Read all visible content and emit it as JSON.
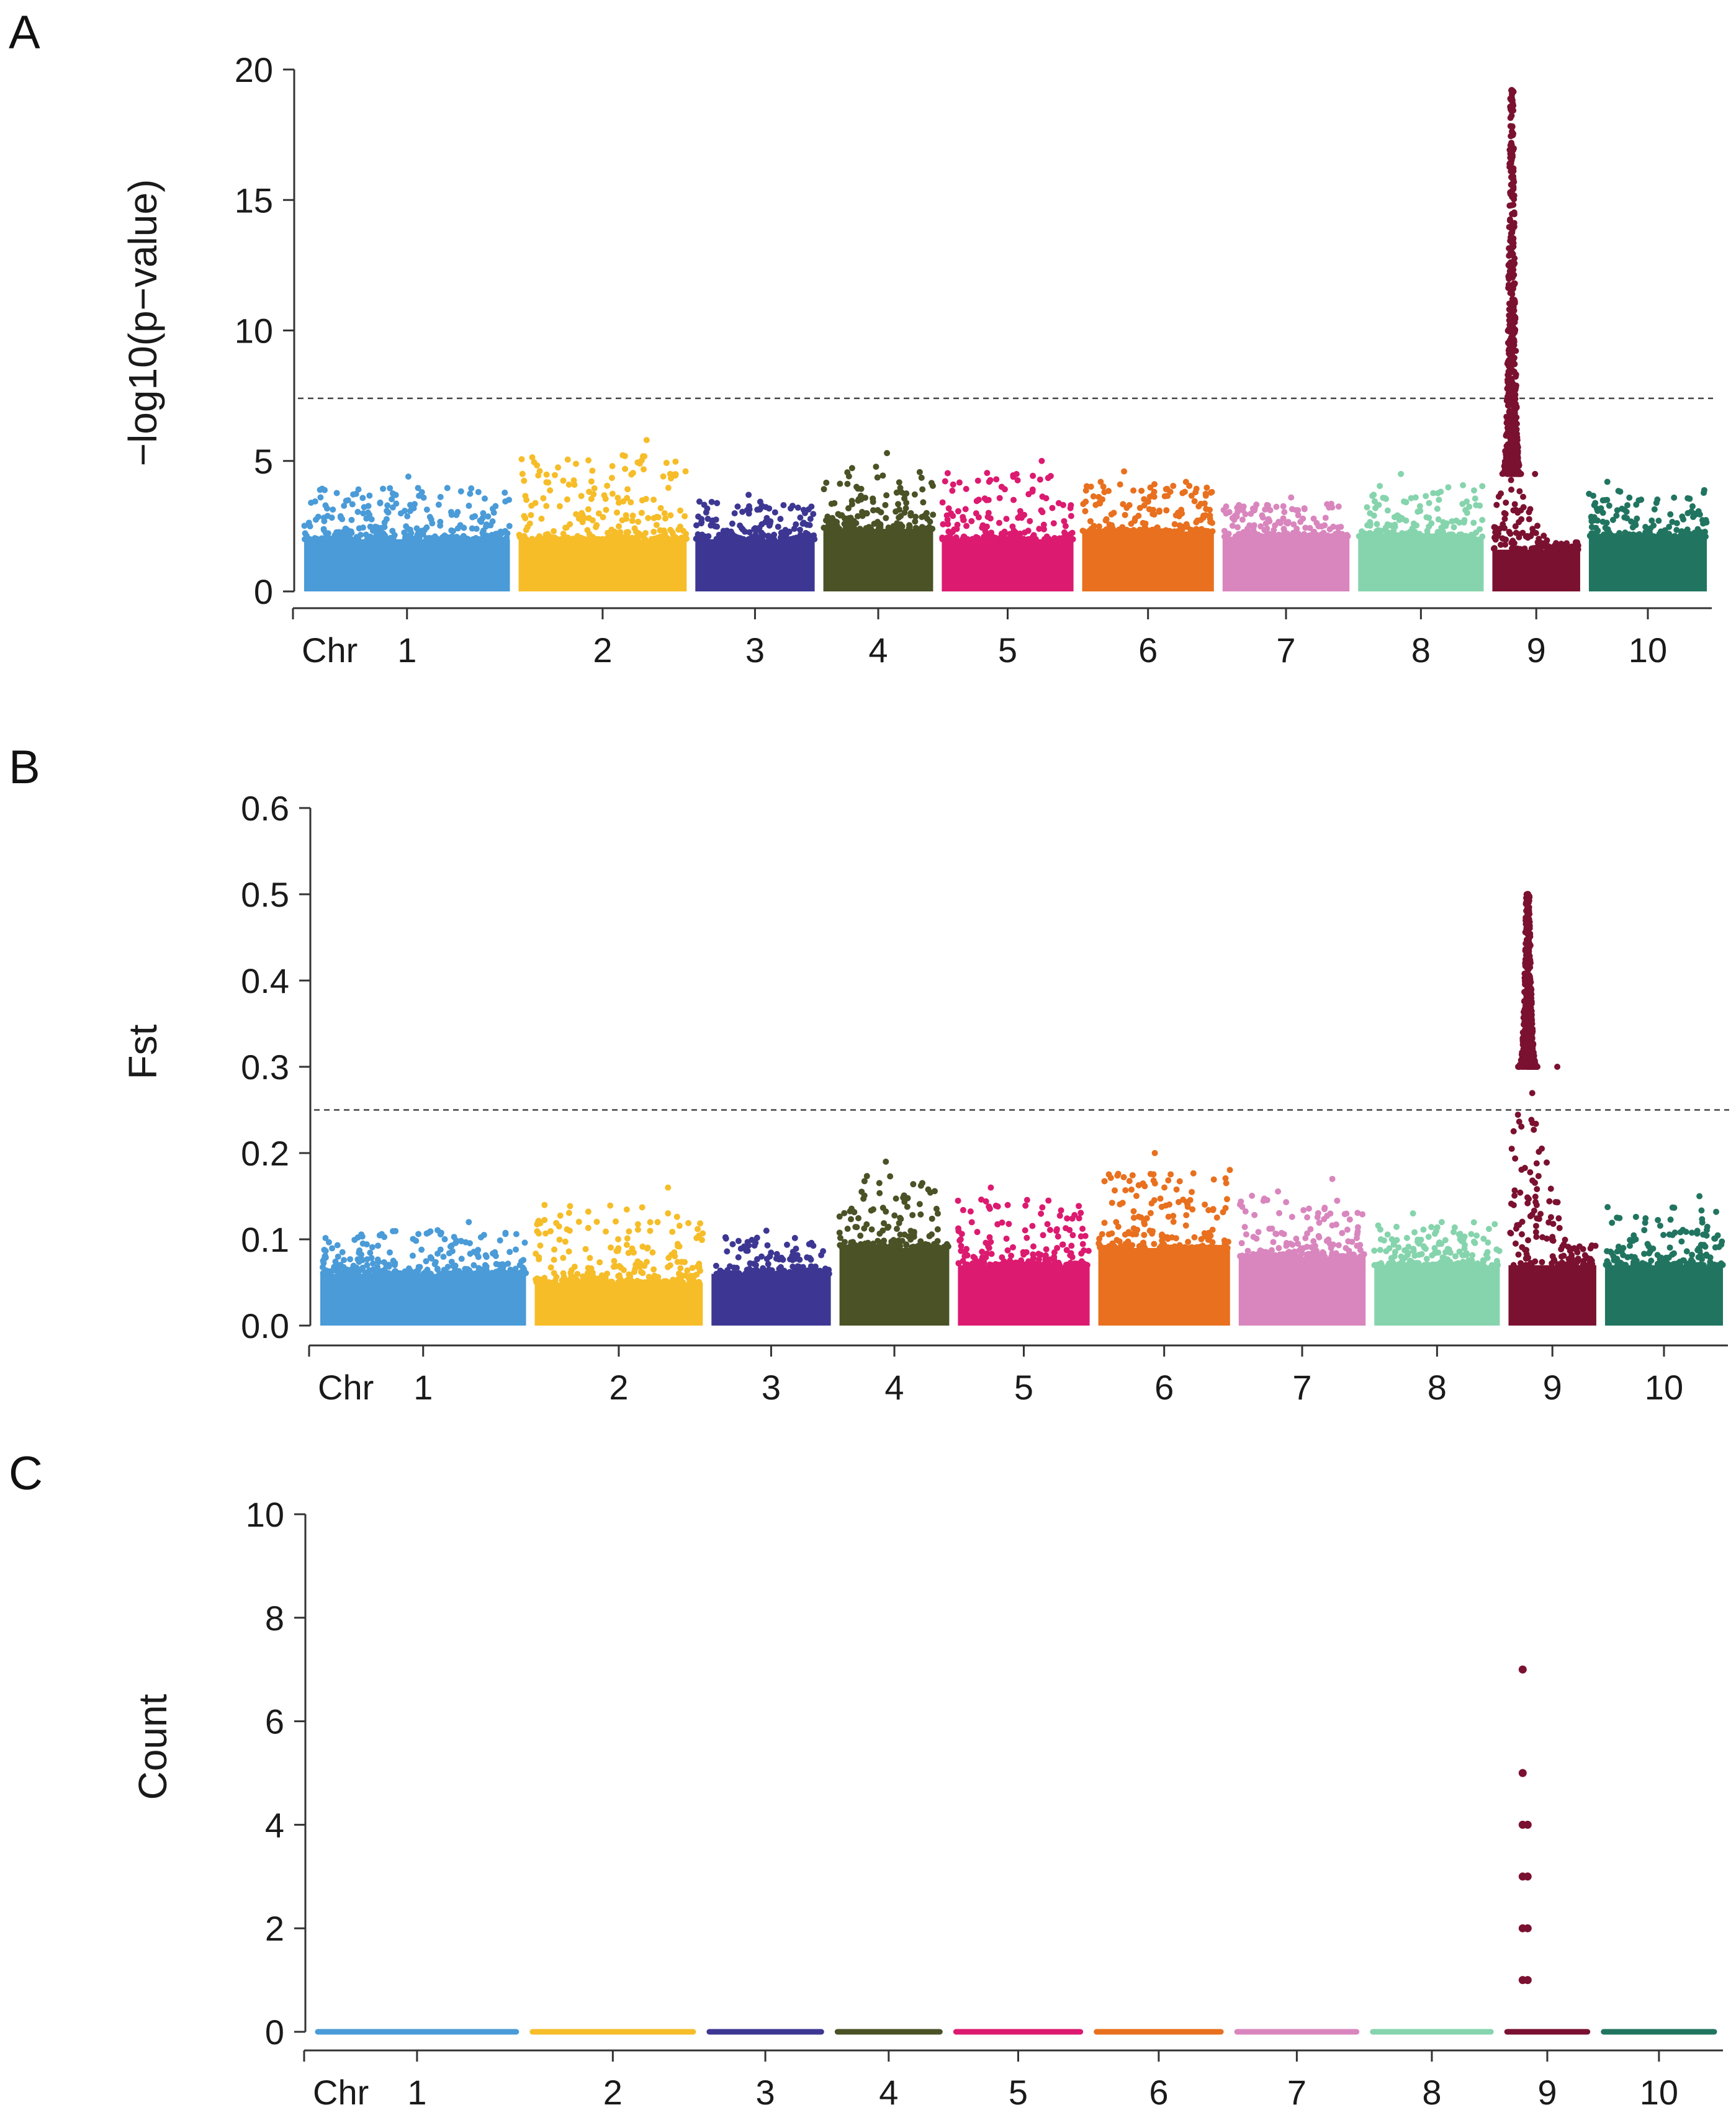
{
  "colors": {
    "chromosomes": [
      "#4a9bd8",
      "#f6bd29",
      "#3d3793",
      "#4a5226",
      "#dc1a70",
      "#e8701e",
      "#d986be",
      "#86d4ad",
      "#7b1130",
      "#217560"
    ],
    "axis": "#333333",
    "threshold": "#444444"
  },
  "chart_data": [
    {
      "panel": "A",
      "type": "scatter",
      "ylabel": "−log10(p−value)",
      "xlabel": "",
      "x_prefix": "Chr",
      "chromosomes": [
        "1",
        "2",
        "3",
        "4",
        "5",
        "6",
        "7",
        "8",
        "9",
        "10"
      ],
      "chromosome_lengths": [
        300,
        245,
        174,
        160,
        192,
        192,
        185,
        183,
        128,
        172
      ],
      "ylim": [
        0,
        20
      ],
      "yticks": [
        0,
        5,
        10,
        15,
        20
      ],
      "threshold": 7.4,
      "background_level": [
        2.0,
        2.0,
        2.0,
        2.4,
        2.0,
        2.3,
        2.1,
        2.1,
        1.6,
        2.1
      ],
      "background_peak": [
        4.4,
        5.8,
        3.7,
        5.3,
        5.0,
        4.6,
        3.6,
        4.5,
        4.5,
        4.2
      ],
      "peak": {
        "chromosome": "9",
        "max": 19.2
      }
    },
    {
      "panel": "B",
      "type": "scatter",
      "ylabel": "Fst",
      "xlabel": "",
      "x_prefix": "Chr",
      "chromosomes": [
        "1",
        "2",
        "3",
        "4",
        "5",
        "6",
        "7",
        "8",
        "9",
        "10"
      ],
      "chromosome_lengths": [
        300,
        245,
        174,
        160,
        192,
        192,
        185,
        183,
        128,
        172
      ],
      "ylim": [
        0,
        0.6
      ],
      "yticks": [
        "0.0",
        "0.1",
        "0.2",
        "0.3",
        "0.4",
        "0.5",
        "0.6"
      ],
      "threshold": 0.25,
      "background_level": [
        0.06,
        0.05,
        0.06,
        0.09,
        0.07,
        0.09,
        0.08,
        0.07,
        0.07,
        0.07
      ],
      "background_peak": [
        0.12,
        0.16,
        0.11,
        0.19,
        0.16,
        0.2,
        0.17,
        0.13,
        0.3,
        0.15
      ],
      "peak": {
        "chromosome": "9",
        "max": 0.5
      }
    },
    {
      "panel": "C",
      "type": "scatter",
      "ylabel": "Count",
      "xlabel": "",
      "x_prefix": "Chr",
      "chromosomes": [
        "1",
        "2",
        "3",
        "4",
        "5",
        "6",
        "7",
        "8",
        "9",
        "10"
      ],
      "chromosome_lengths": [
        300,
        245,
        174,
        160,
        192,
        192,
        185,
        183,
        128,
        172
      ],
      "ylim": [
        0,
        10
      ],
      "yticks": [
        0,
        2,
        4,
        6,
        8,
        10
      ],
      "baseline": 0,
      "peak_points": {
        "chromosome": "9",
        "values": [
          7,
          5,
          4,
          3,
          2,
          1
        ]
      }
    }
  ]
}
